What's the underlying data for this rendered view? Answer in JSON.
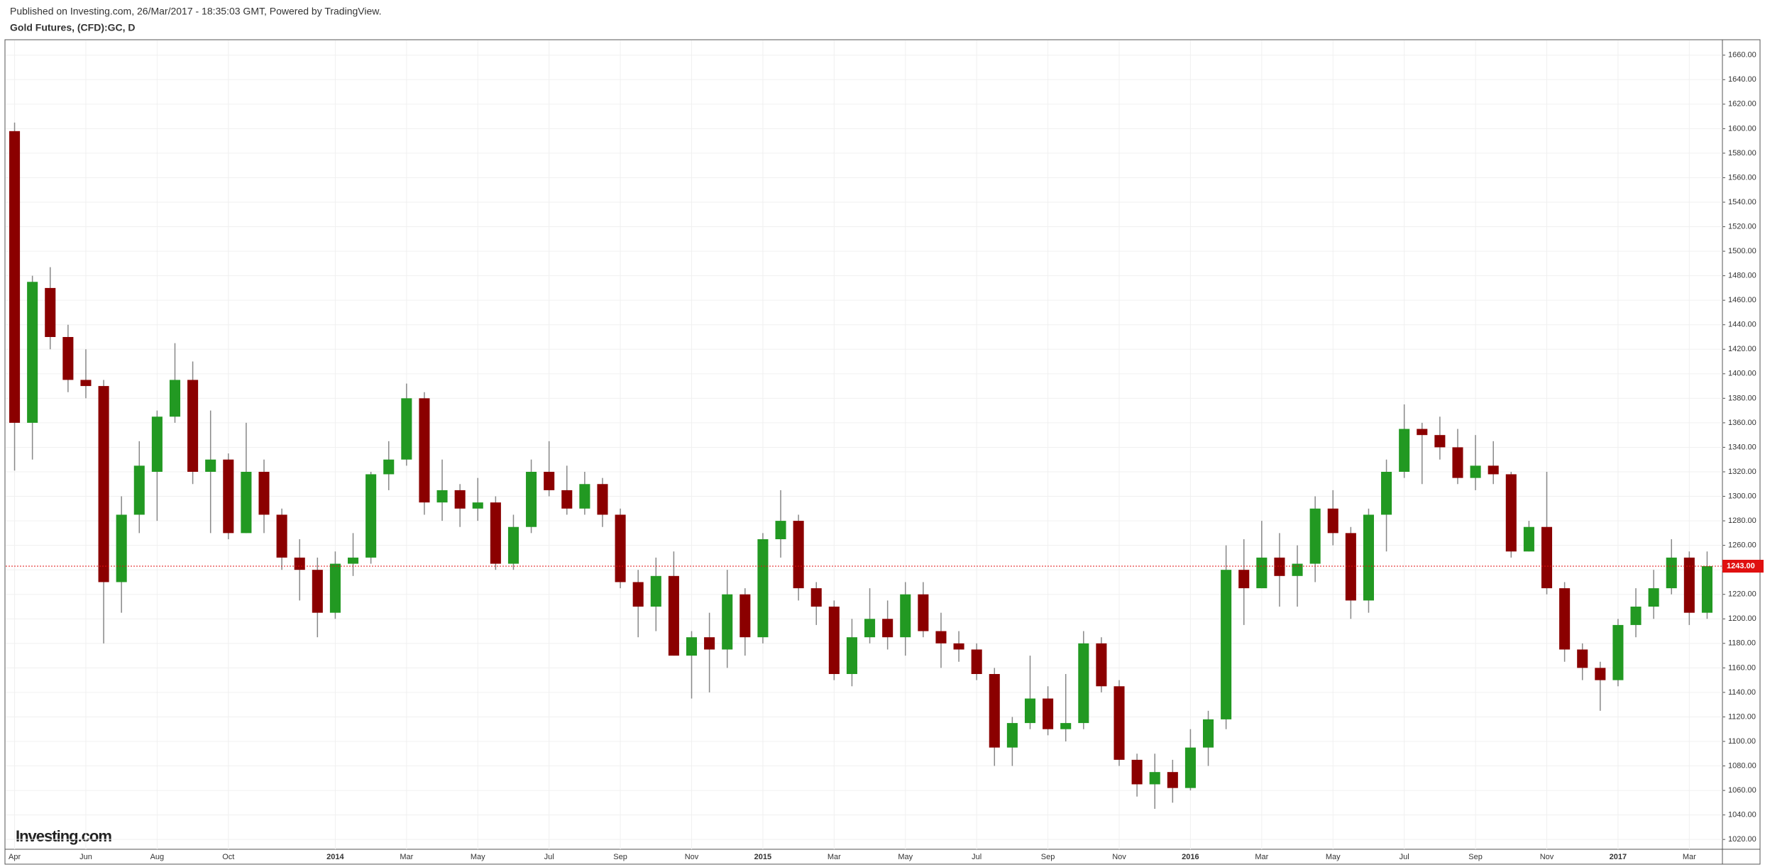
{
  "chart_data": {
    "type": "candlestick",
    "subtitle": "Published on Investing.com, 26/Mar/2017 - 18:35:03 GMT, Powered by TradingView.",
    "title": "Gold Futures, (CFD):GC, D",
    "watermark": "Investing.com",
    "categories": [
      "Apr",
      null,
      null,
      null,
      "Jun",
      null,
      null,
      null,
      "Aug",
      null,
      null,
      null,
      "Oct",
      null,
      null,
      null,
      null,
      null,
      "2014",
      null,
      null,
      null,
      "Mar",
      null,
      null,
      null,
      "May",
      null,
      null,
      null,
      "Jul",
      null,
      null,
      null,
      "Sep",
      null,
      null,
      null,
      "Nov",
      null,
      null,
      null,
      "2015",
      null,
      null,
      null,
      "Mar",
      null,
      null,
      null,
      "May",
      null,
      null,
      null,
      "Jul",
      null,
      null,
      null,
      "Sep",
      null,
      null,
      null,
      "Nov",
      null,
      null,
      null,
      "2016",
      null,
      null,
      null,
      "Mar",
      null,
      null,
      null,
      "May",
      null,
      null,
      null,
      "Jul",
      null,
      null,
      null,
      "Sep",
      null,
      null,
      null,
      "Nov",
      null,
      null,
      null,
      "2017",
      null,
      null,
      null,
      "Mar",
      null
    ],
    "open": [
      1598,
      1360,
      1470,
      1430,
      1395,
      1390,
      1230,
      1285,
      1320,
      1365,
      1395,
      1320,
      1330,
      1270,
      1320,
      1285,
      1250,
      1240,
      1205,
      1245,
      1250,
      1318,
      1330,
      1380,
      1295,
      1305,
      1290,
      1295,
      1245,
      1275,
      1320,
      1305,
      1290,
      1310,
      1285,
      1230,
      1210,
      1235,
      1170,
      1185,
      1175,
      1220,
      1185,
      1265,
      1280,
      1225,
      1210,
      1155,
      1185,
      1200,
      1185,
      1220,
      1190,
      1180,
      1175,
      1155,
      1095,
      1115,
      1135,
      1110,
      1115,
      1180,
      1145,
      1085,
      1065,
      1075,
      1062,
      1095,
      1118,
      1240,
      1225,
      1250,
      1235,
      1245,
      1290,
      1270,
      1215,
      1285,
      1320,
      1355,
      1350,
      1340,
      1315,
      1325,
      1318,
      1255,
      1275,
      1225,
      1175,
      1160,
      1150,
      1195,
      1210,
      1225,
      1250,
      1205
    ],
    "high": [
      1605,
      1480,
      1487,
      1440,
      1420,
      1395,
      1300,
      1345,
      1370,
      1425,
      1410,
      1370,
      1335,
      1360,
      1330,
      1290,
      1265,
      1250,
      1255,
      1270,
      1320,
      1345,
      1392,
      1385,
      1330,
      1310,
      1315,
      1300,
      1285,
      1330,
      1345,
      1325,
      1320,
      1315,
      1290,
      1240,
      1250,
      1255,
      1190,
      1205,
      1240,
      1225,
      1270,
      1305,
      1285,
      1230,
      1215,
      1200,
      1225,
      1215,
      1230,
      1230,
      1205,
      1190,
      1180,
      1160,
      1120,
      1170,
      1145,
      1155,
      1190,
      1185,
      1150,
      1090,
      1090,
      1085,
      1110,
      1125,
      1260,
      1265,
      1280,
      1270,
      1260,
      1300,
      1305,
      1275,
      1290,
      1330,
      1375,
      1360,
      1365,
      1355,
      1350,
      1345,
      1320,
      1280,
      1320,
      1230,
      1180,
      1165,
      1200,
      1225,
      1240,
      1265,
      1255,
      1255
    ],
    "low": [
      1321,
      1330,
      1420,
      1385,
      1380,
      1180,
      1205,
      1270,
      1280,
      1360,
      1310,
      1270,
      1265,
      1270,
      1270,
      1240,
      1215,
      1185,
      1200,
      1235,
      1245,
      1305,
      1325,
      1285,
      1280,
      1275,
      1280,
      1240,
      1240,
      1270,
      1300,
      1285,
      1285,
      1275,
      1225,
      1185,
      1190,
      1170,
      1135,
      1140,
      1160,
      1170,
      1180,
      1250,
      1215,
      1195,
      1150,
      1145,
      1180,
      1175,
      1170,
      1185,
      1160,
      1165,
      1150,
      1080,
      1080,
      1110,
      1105,
      1100,
      1110,
      1140,
      1080,
      1055,
      1045,
      1050,
      1060,
      1080,
      1110,
      1195,
      1225,
      1210,
      1210,
      1230,
      1260,
      1200,
      1205,
      1255,
      1315,
      1310,
      1330,
      1310,
      1305,
      1310,
      1250,
      1255,
      1220,
      1165,
      1150,
      1125,
      1145,
      1185,
      1200,
      1220,
      1195,
      1200
    ],
    "close": [
      1360,
      1475,
      1430,
      1395,
      1390,
      1230,
      1285,
      1325,
      1365,
      1395,
      1320,
      1330,
      1270,
      1320,
      1285,
      1250,
      1240,
      1205,
      1245,
      1250,
      1318,
      1330,
      1380,
      1295,
      1305,
      1290,
      1295,
      1245,
      1275,
      1320,
      1305,
      1290,
      1310,
      1285,
      1230,
      1210,
      1235,
      1170,
      1185,
      1175,
      1220,
      1185,
      1265,
      1280,
      1225,
      1210,
      1155,
      1185,
      1200,
      1185,
      1220,
      1190,
      1180,
      1175,
      1155,
      1095,
      1115,
      1135,
      1110,
      1115,
      1180,
      1145,
      1085,
      1065,
      1075,
      1062,
      1095,
      1118,
      1240,
      1225,
      1250,
      1235,
      1245,
      1290,
      1270,
      1215,
      1285,
      1320,
      1355,
      1350,
      1340,
      1315,
      1325,
      1318,
      1255,
      1275,
      1225,
      1175,
      1160,
      1150,
      1195,
      1210,
      1225,
      1250,
      1205,
      1243
    ],
    "up_color": "#229922",
    "down_color": "#8b0000",
    "wick_color": "#888888",
    "last_price": {
      "value": 1243,
      "label": "1243.00"
    },
    "last_price_color": "#e01010",
    "ylim": [
      1012,
      1672
    ],
    "yticks": [
      {
        "value": 1020,
        "label": "1020.00"
      },
      {
        "value": 1040,
        "label": "1040.00"
      },
      {
        "value": 1060,
        "label": "1060.00"
      },
      {
        "value": 1080,
        "label": "1080.00"
      },
      {
        "value": 1100,
        "label": "1100.00"
      },
      {
        "value": 1120,
        "label": "1120.00"
      },
      {
        "value": 1140,
        "label": "1140.00"
      },
      {
        "value": 1160,
        "label": "1160.00"
      },
      {
        "value": 1180,
        "label": "1180.00"
      },
      {
        "value": 1200,
        "label": "1200.00"
      },
      {
        "value": 1220,
        "label": "1220.00"
      },
      {
        "value": 1240,
        "label": "1240.00"
      },
      {
        "value": 1260,
        "label": "1260.00"
      },
      {
        "value": 1280,
        "label": "1280.00"
      },
      {
        "value": 1300,
        "label": "1300.00"
      },
      {
        "value": 1320,
        "label": "1320.00"
      },
      {
        "value": 1340,
        "label": "1340.00"
      },
      {
        "value": 1360,
        "label": "1360.00"
      },
      {
        "value": 1380,
        "label": "1380.00"
      },
      {
        "value": 1400,
        "label": "1400.00"
      },
      {
        "value": 1420,
        "label": "1420.00"
      },
      {
        "value": 1440,
        "label": "1440.00"
      },
      {
        "value": 1460,
        "label": "1460.00"
      },
      {
        "value": 1480,
        "label": "1480.00"
      },
      {
        "value": 1500,
        "label": "1500.00"
      },
      {
        "value": 1520,
        "label": "1520.00"
      },
      {
        "value": 1540,
        "label": "1540.00"
      },
      {
        "value": 1560,
        "label": "1560.00"
      },
      {
        "value": 1580,
        "label": "1580.00"
      },
      {
        "value": 1600,
        "label": "1600.00"
      },
      {
        "value": 1620,
        "label": "1620.00"
      },
      {
        "value": 1640,
        "label": "1640.00"
      },
      {
        "value": 1660,
        "label": "1660.00"
      }
    ],
    "grid": true
  }
}
